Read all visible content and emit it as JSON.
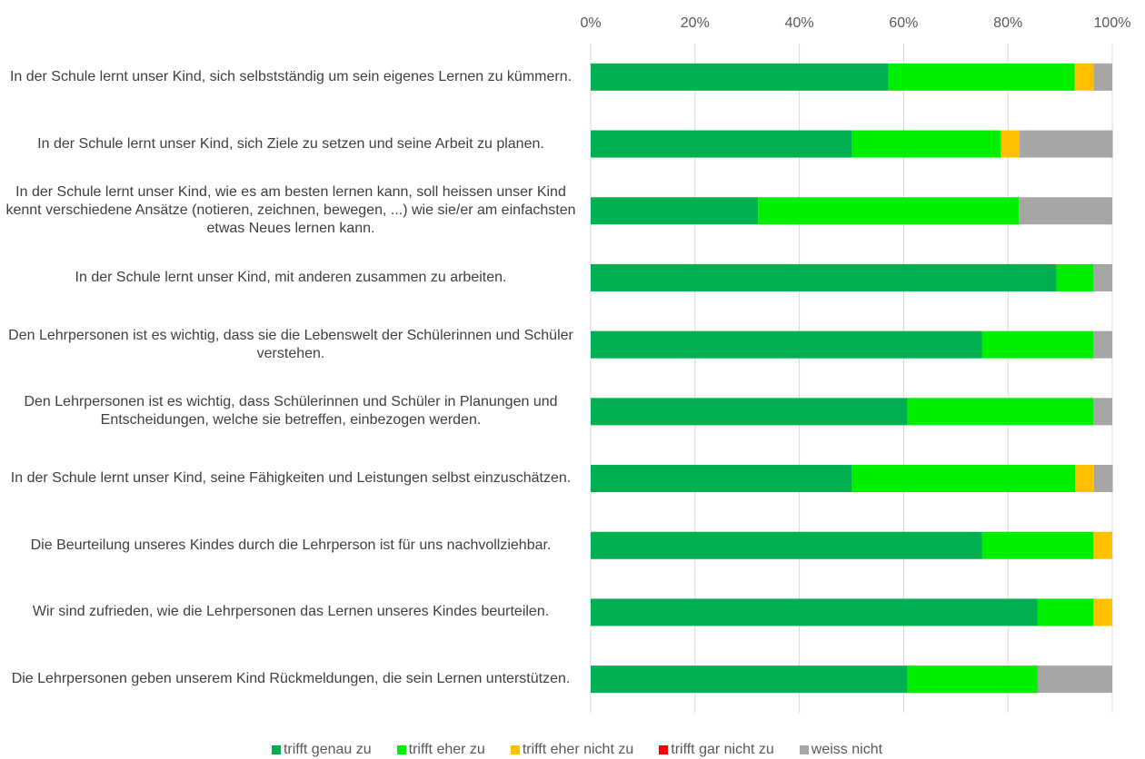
{
  "chart_data": {
    "type": "stacked-bar-horizontal",
    "categories": [
      "In der Schule lernt unser Kind, sich selbstständig um sein eigenes Lernen zu kümmern.",
      "In der Schule lernt unser Kind, sich Ziele zu setzen und seine Arbeit zu planen.",
      "In der Schule lernt unser Kind, wie es am besten lernen kann, soll heissen unser Kind kennt verschiedene Ansätze (notieren, zeichnen, bewegen, ...) wie sie/er am einfachsten etwas Neues lernen kann.",
      "In der Schule lernt unser Kind, mit anderen zusammen zu arbeiten.",
      "Den Lehrpersonen ist es wichtig, dass sie die Lebenswelt der Schülerinnen und Schüler verstehen.",
      "Den Lehrpersonen ist es wichtig, dass Schülerinnen und Schüler in Planungen und Entscheidungen, welche sie betreffen, einbezogen werden.",
      "In der Schule lernt unser Kind, seine Fähigkeiten und Leistungen selbst einzuschätzen.",
      "Die Beurteilung unseres Kindes durch die Lehrperson ist für uns nachvollziehbar.",
      "Wir sind zufrieden, wie die Lehrpersonen das Lernen unseres Kindes beurteilen.",
      "Die Lehrpersonen geben unserem Kind Rückmeldungen, die sein Lernen unterstützen."
    ],
    "series": [
      {
        "name": "trifft genau zu",
        "color": "#00b050",
        "values": [
          57.1,
          50,
          32.1,
          89.3,
          75,
          60.7,
          50,
          75,
          85.7,
          60.7
        ]
      },
      {
        "name": "trifft eher zu",
        "color": "#00ee00",
        "values": [
          35.7,
          28.6,
          50,
          7.1,
          21.4,
          35.7,
          42.9,
          21.4,
          10.7,
          25
        ]
      },
      {
        "name": "trifft eher nicht zu",
        "color": "#ffc000",
        "values": [
          3.6,
          3.6,
          0,
          0,
          0,
          0,
          3.6,
          3.6,
          3.6,
          0
        ]
      },
      {
        "name": "trifft gar nicht zu",
        "color": "#ff0000",
        "values": [
          0,
          0,
          0,
          0,
          0,
          0,
          0,
          0,
          0,
          0
        ]
      },
      {
        "name": "weiss nicht",
        "color": "#a6a6a6",
        "values": [
          3.6,
          17.9,
          17.9,
          3.6,
          3.6,
          3.6,
          3.6,
          0,
          0,
          14.3
        ]
      }
    ],
    "xlim": [
      0,
      100
    ],
    "xticks": [
      {
        "value": 0,
        "label": "0%"
      },
      {
        "value": 20,
        "label": "20%"
      },
      {
        "value": 40,
        "label": "40%"
      },
      {
        "value": 60,
        "label": "60%"
      },
      {
        "value": 80,
        "label": "80%"
      },
      {
        "value": 100,
        "label": "100%"
      }
    ],
    "grid": true
  }
}
